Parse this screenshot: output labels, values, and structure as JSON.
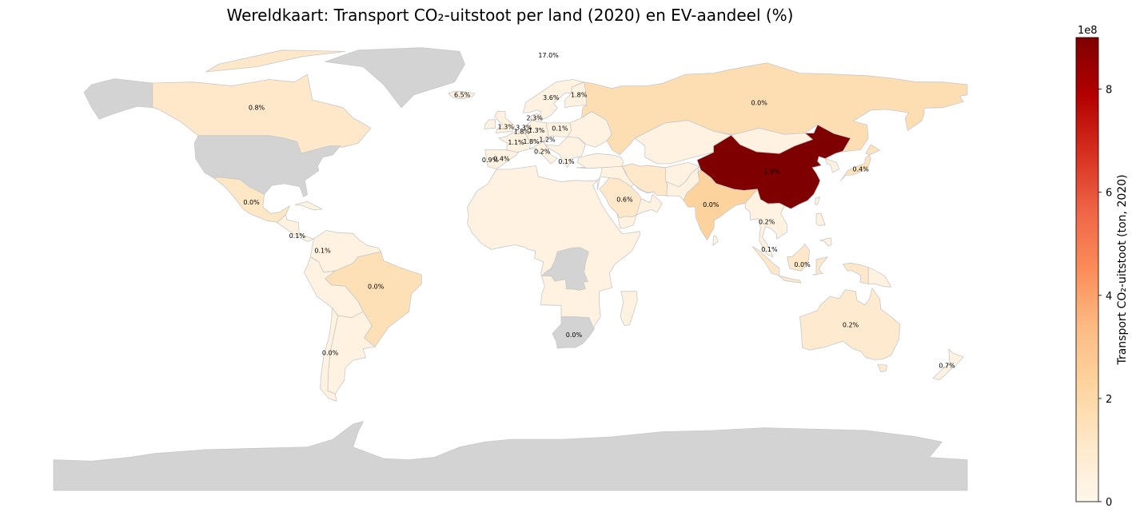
{
  "title": "Wereldkaart: Transport CO₂-uitstoot per land (2020) en EV-aandeel (%)",
  "colorbar": {
    "label": "Transport CO₂-uitstoot (ton, 2020)",
    "exponent": "1e8",
    "min": 0,
    "max": 900000000,
    "ticks": [
      {
        "label": "0",
        "value": 0
      },
      {
        "label": "2",
        "value": 200000000
      },
      {
        "label": "4",
        "value": 400000000
      },
      {
        "label": "6",
        "value": 600000000
      },
      {
        "label": "8",
        "value": 800000000
      }
    ],
    "colormap": "OrRd",
    "missing_color": "#d3d3d3",
    "border_color": "#c8c8c8"
  },
  "map_labels": [
    {
      "country": "Canada",
      "ev": "0.8%",
      "lon": -100,
      "lat": 60
    },
    {
      "country": "Mexico",
      "ev": "0.0%",
      "lon": -102,
      "lat": 23
    },
    {
      "country": "Costa Rica",
      "ev": "0.1%",
      "lon": -84,
      "lat": 9.8
    },
    {
      "country": "Colombia",
      "ev": "0.1%",
      "lon": -74,
      "lat": 4
    },
    {
      "country": "Brazil",
      "ev": "0.0%",
      "lon": -53,
      "lat": -10
    },
    {
      "country": "Chile",
      "ev": "0.0%",
      "lon": -71,
      "lat": -36
    },
    {
      "country": "Iceland",
      "ev": "6.5%",
      "lon": -19,
      "lat": 65
    },
    {
      "country": "Norway",
      "ev": "17.0%",
      "lon": 15,
      "lat": 80.5
    },
    {
      "country": "Sweden",
      "ev": "3.6%",
      "lon": 16,
      "lat": 64
    },
    {
      "country": "Finland",
      "ev": "1.8%",
      "lon": 27,
      "lat": 65
    },
    {
      "country": "Denmark",
      "ev": "2.3%",
      "lon": 9.5,
      "lat": 56
    },
    {
      "country": "United Kingdom",
      "ev": "1.3%",
      "lon": -1.8,
      "lat": 52.5
    },
    {
      "country": "Netherlands",
      "ev": "3.3%",
      "lon": 5.3,
      "lat": 52.2
    },
    {
      "country": "Belgium",
      "ev": "1.8%",
      "lon": 4.5,
      "lat": 50.6
    },
    {
      "country": "Germany",
      "ev": "1.3%",
      "lon": 10.3,
      "lat": 51.2
    },
    {
      "country": "Poland",
      "ev": "0.1%",
      "lon": 19.5,
      "lat": 52
    },
    {
      "country": "Austria",
      "ev": "1.2%",
      "lon": 14.5,
      "lat": 47.6
    },
    {
      "country": "France",
      "ev": "1.1%",
      "lon": 2.2,
      "lat": 46.5
    },
    {
      "country": "Switzerland",
      "ev": "1.8%",
      "lon": 8.2,
      "lat": 46.8
    },
    {
      "country": "Italy",
      "ev": "0.2%",
      "lon": 12.5,
      "lat": 42.8
    },
    {
      "country": "Portugal",
      "ev": "0.9%",
      "lon": -8,
      "lat": 39.5
    },
    {
      "country": "Spain",
      "ev": "0.4%",
      "lon": -3.5,
      "lat": 40
    },
    {
      "country": "Greece",
      "ev": "0.1%",
      "lon": 22,
      "lat": 39
    },
    {
      "country": "Russia",
      "ev": "0.0%",
      "lon": 98,
      "lat": 62
    },
    {
      "country": "China",
      "ev": "1.9%",
      "lon": 103,
      "lat": 35
    },
    {
      "country": "Japan",
      "ev": "0.4%",
      "lon": 138,
      "lat": 36
    },
    {
      "country": "India",
      "ev": "0.0%",
      "lon": 79,
      "lat": 22
    },
    {
      "country": "Thailand",
      "ev": "0.2%",
      "lon": 101,
      "lat": 15.3
    },
    {
      "country": "Malaysia",
      "ev": "0.1%",
      "lon": 102,
      "lat": 4.5
    },
    {
      "country": "Indonesia",
      "ev": "0.0%",
      "lon": 115,
      "lat": -1.5
    },
    {
      "country": "Saudi Arabia",
      "ev": "0.6%",
      "lon": 45,
      "lat": 24
    },
    {
      "country": "South Africa",
      "ev": "0.0%",
      "lon": 25,
      "lat": -29
    },
    {
      "country": "Australia",
      "ev": "0.2%",
      "lon": 134,
      "lat": -25
    },
    {
      "country": "New Zealand",
      "ev": "0.7%",
      "lon": 172,
      "lat": -41
    }
  ],
  "region_values": [
    {
      "region": "China",
      "value": 900000000
    },
    {
      "region": "Russia",
      "value": 170000000
    },
    {
      "region": "India",
      "value": 230000000
    },
    {
      "region": "Brazil",
      "value": 160000000
    },
    {
      "region": "Canada",
      "value": 110000000
    },
    {
      "region": "Mexico",
      "value": 120000000
    },
    {
      "region": "Saudi Arabia",
      "value": 110000000
    },
    {
      "region": "Iran",
      "value": 110000000
    },
    {
      "region": "Japan",
      "value": 140000000
    },
    {
      "region": "Indonesia",
      "value": 110000000
    },
    {
      "region": "Australia",
      "value": 90000000
    },
    {
      "region": "Europe",
      "value": 100000000
    },
    {
      "region": "Others",
      "value": 35000000
    },
    {
      "region": "United States",
      "value": null
    },
    {
      "region": "Greenland",
      "value": null
    },
    {
      "region": "Antarctica",
      "value": null
    },
    {
      "region": "Alaska",
      "value": null
    },
    {
      "region": "DR Congo",
      "value": null
    }
  ]
}
